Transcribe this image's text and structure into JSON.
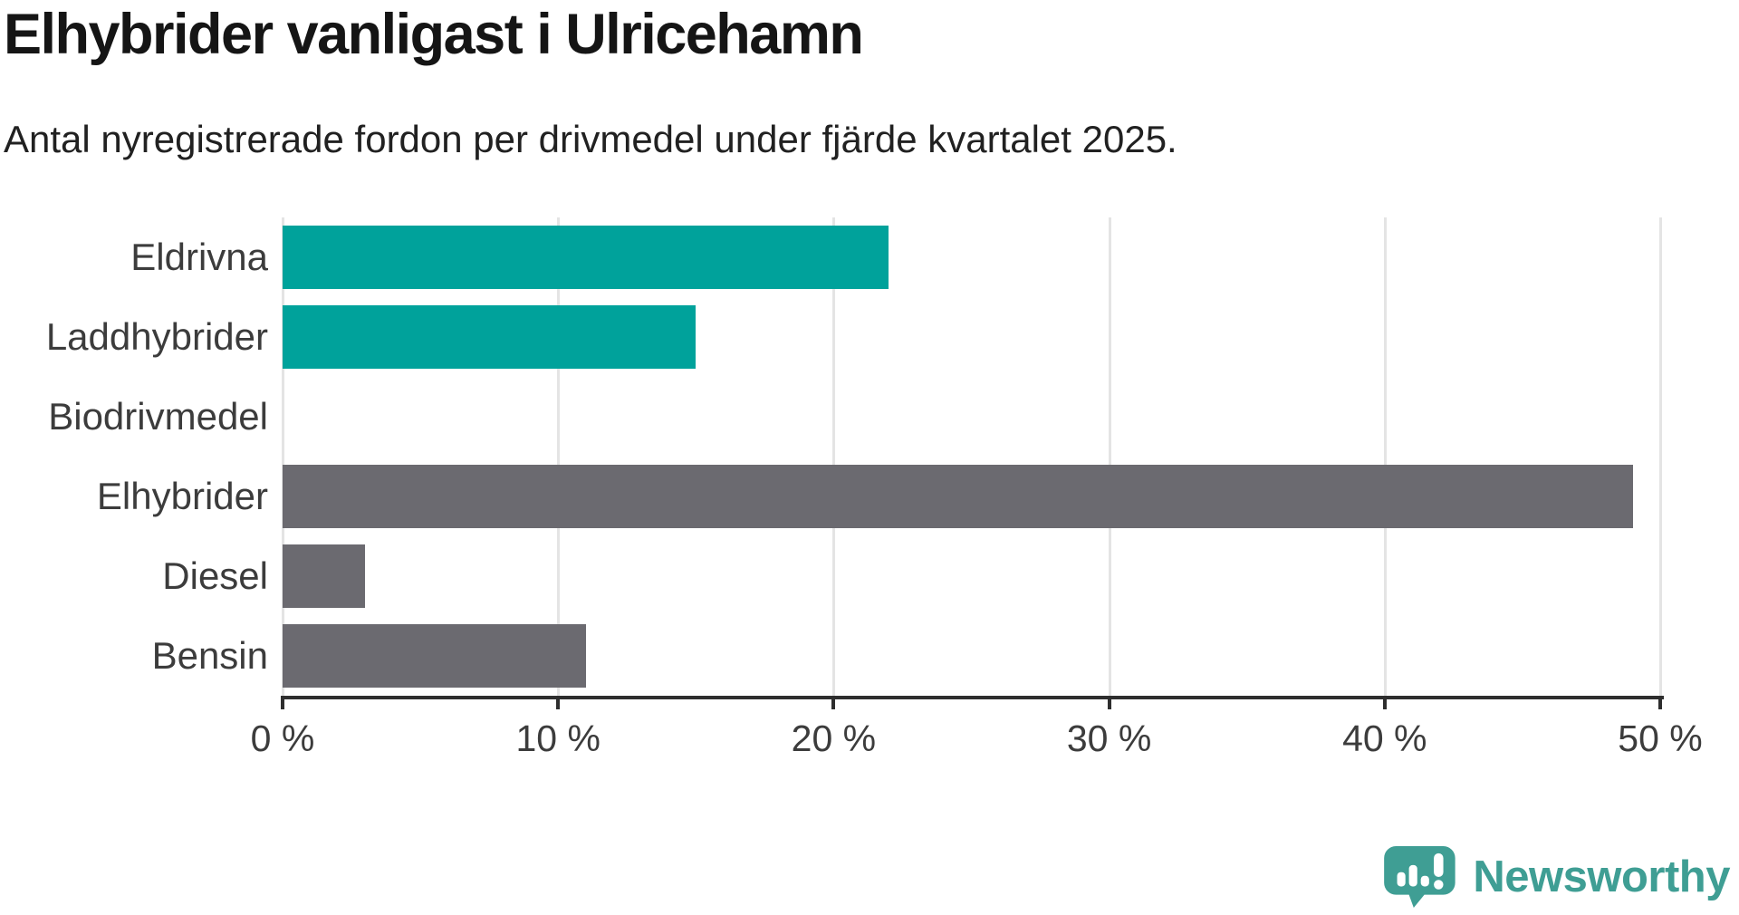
{
  "header": {
    "title": "Elhybrider vanligast i Ulricehamn",
    "subtitle": "Antal nyregistrerade fordon per drivmedel under fjärde kvartalet 2025."
  },
  "chart_data": {
    "type": "bar",
    "orientation": "horizontal",
    "title": "Elhybrider vanligast i Ulricehamn",
    "subtitle": "Antal nyregistrerade fordon per drivmedel under fjärde kvartalet 2025.",
    "categories": [
      "Eldrivna",
      "Laddhybrider",
      "Biodrivmedel",
      "Elhybrider",
      "Diesel",
      "Bensin"
    ],
    "values": [
      22,
      15,
      0,
      49,
      3,
      11
    ],
    "value_unit": "%",
    "bar_colors": [
      "#00a29b",
      "#00a29b",
      "#00a29b",
      "#6b6a70",
      "#6b6a70",
      "#6b6a70"
    ],
    "xlim": [
      0,
      50
    ],
    "x_ticks": [
      0,
      10,
      20,
      30,
      40,
      50
    ],
    "x_tick_labels": [
      "0 %",
      "10 %",
      "20 %",
      "30 %",
      "40 %",
      "50 %"
    ],
    "grid": true,
    "legend_position": "none",
    "colors": {
      "highlight": "#00a29b",
      "neutral": "#6b6a70",
      "gridline": "#e4e4e4",
      "axis": "#2e2e2e",
      "label": "#3c3c3c",
      "title": "#151515",
      "subtitle": "#212121"
    }
  },
  "branding": {
    "logo_text": "Newsworthy",
    "logo_color": "#3f9e94",
    "logo_icon": "newsworthy-speech-bubble-chart-icon"
  }
}
